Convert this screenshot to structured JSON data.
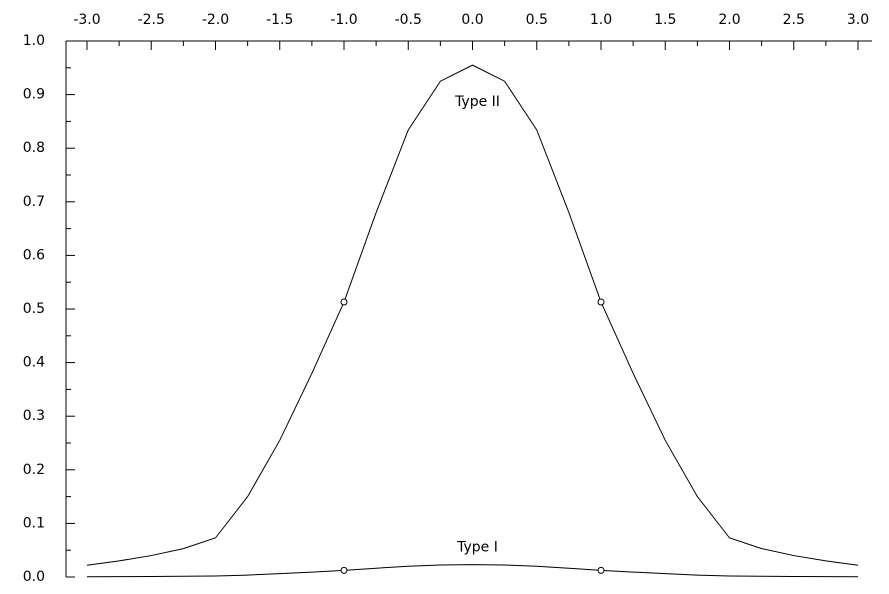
{
  "chart_data": {
    "type": "line",
    "x": [
      -3,
      -2.75,
      -2.5,
      -2.25,
      -2,
      -1.75,
      -1.5,
      -1.25,
      -1,
      -0.75,
      -0.5,
      -0.25,
      0,
      0.25,
      0.5,
      0.75,
      1,
      1.25,
      1.5,
      1.75,
      2,
      2.25,
      2.5,
      2.75,
      3
    ],
    "series": [
      {
        "name": "Type II",
        "color": "#000000",
        "values": [
          0.022,
          0.03,
          0.04,
          0.053,
          0.073,
          0.15,
          0.255,
          0.38,
          0.513,
          0.68,
          0.834,
          0.925,
          0.955,
          0.925,
          0.834,
          0.68,
          0.513,
          0.38,
          0.255,
          0.15,
          0.073,
          0.053,
          0.04,
          0.03,
          0.022
        ],
        "marker_x": [
          -1,
          1
        ],
        "marker_values": [
          0.513,
          0.513
        ]
      },
      {
        "name": "Type I",
        "color": "#000000",
        "values": [
          0.0005,
          0.0007,
          0.001,
          0.0013,
          0.0018,
          0.0036,
          0.0062,
          0.0092,
          0.0124,
          0.0164,
          0.02,
          0.0223,
          0.023,
          0.0223,
          0.02,
          0.0164,
          0.0124,
          0.0092,
          0.0062,
          0.0036,
          0.0018,
          0.0013,
          0.001,
          0.0007,
          0.0005
        ],
        "marker_x": [
          -1,
          1
        ],
        "marker_values": [
          0.0124,
          0.0124
        ]
      }
    ],
    "xlim": [
      -3,
      3
    ],
    "ylim": [
      0,
      1
    ],
    "xticks": [
      {
        "value": -3,
        "label": "-3.0"
      },
      -2.5,
      {
        "value": -2,
        "label": "-2.0"
      },
      -1.5,
      {
        "value": -1,
        "label": "-1.0"
      },
      -0.5,
      {
        "value": 0,
        "label": "0.0"
      },
      0.5,
      {
        "value": 1,
        "label": "1.0"
      },
      1.5,
      {
        "value": 2,
        "label": "2.0"
      },
      2.5,
      {
        "value": 3,
        "label": "3.0"
      }
    ],
    "xminor": [
      -2.75,
      -2.25,
      -1.75,
      -1.25,
      -0.75,
      -0.25,
      0.25,
      0.75,
      1.25,
      1.75,
      2.25,
      2.75
    ],
    "yticks": [
      {
        "value": 0,
        "label": "0.0"
      },
      0.1,
      0.2,
      0.3,
      0.4,
      0.5,
      0.6,
      0.7,
      0.8,
      0.9,
      {
        "value": 1,
        "label": "1.0"
      }
    ],
    "yminor": [
      0.05,
      0.15,
      0.25,
      0.35,
      0.45,
      0.55,
      0.65,
      0.75,
      0.85,
      0.95
    ],
    "x_axis_position": "top",
    "grid": false
  }
}
